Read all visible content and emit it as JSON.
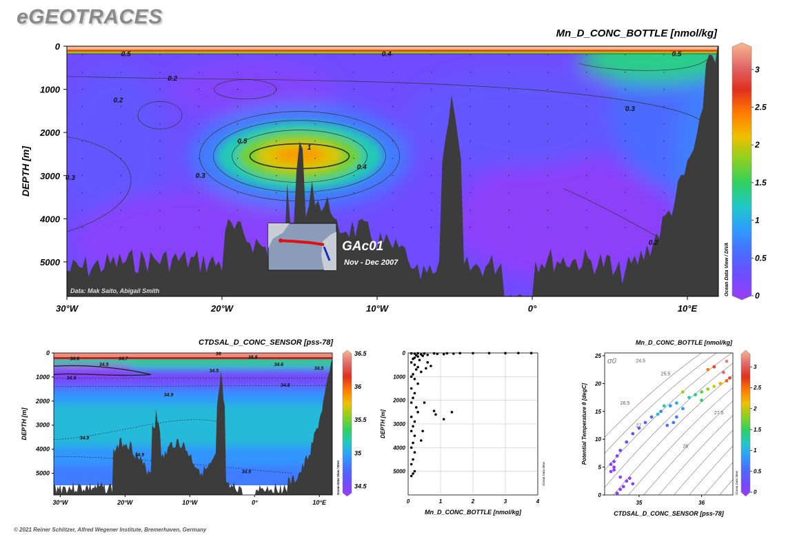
{
  "brand": "eGEOTRACES",
  "copyright": "© 2021 Reiner Schlitzer, Alfred Wegener Institute, Bremerhaven, Germany",
  "colors": {
    "scale": [
      "#9b3cf5",
      "#6f4cff",
      "#4a6bff",
      "#2f9bff",
      "#20c8c8",
      "#30d060",
      "#8ad020",
      "#f0c000",
      "#ff7a00",
      "#e03020",
      "#e06a6a",
      "#f8b890"
    ],
    "seafloor": "#3c3c3c",
    "axis": "#000000"
  },
  "chart_data": [
    {
      "id": "main-section",
      "type": "heatmap",
      "title": "Mn_D_CONC_BOTTLE [nmol/kg]",
      "ylabel": "DEPTH [m]",
      "x_ticks": [
        "30°W",
        "20°W",
        "10°W",
        "0°",
        "10°E"
      ],
      "y_ticks": [
        "0",
        "1000",
        "2000",
        "3000",
        "4000",
        "5000"
      ],
      "xlim": [
        -30,
        12
      ],
      "ylim": [
        0,
        5800
      ],
      "colorbar": {
        "ticks": [
          "0",
          "0.5",
          "1",
          "1.5",
          "2",
          "2.5",
          "3"
        ],
        "range": [
          0,
          3.3
        ],
        "label": "Ocean Data View / DIVA"
      },
      "contour_labels": [
        "0.5",
        "0.2",
        "0.2",
        "0.4",
        "0.5",
        "0.3",
        "0.5",
        "1",
        "0.3",
        "0.4",
        "0.3",
        "0.2"
      ],
      "data_credit": "Data: Mak Saito, Abigail Smith",
      "inset": {
        "cruise": "GAc01",
        "period": "Nov - Dec 2007"
      }
    },
    {
      "id": "salinity-section",
      "type": "heatmap",
      "title": "CTDSAL_D_CONC_SENSOR [pss-78]",
      "ylabel": "DEPTH [m]",
      "x_ticks": [
        "30°W",
        "20°W",
        "10°W",
        "0°",
        "10°E"
      ],
      "y_ticks": [
        "0",
        "1000",
        "2000",
        "3000",
        "4000",
        "5000"
      ],
      "xlim": [
        -31,
        12
      ],
      "ylim": [
        0,
        5900
      ],
      "colorbar": {
        "ticks": [
          "34.5",
          "35",
          "35.5",
          "36",
          "36.5"
        ],
        "range": [
          34.4,
          36.5
        ],
        "label": "Ocean Data View / DIVA"
      },
      "contour_labels": [
        "36",
        "34.6",
        "34.7",
        "34.5",
        "35.5",
        "34.6",
        "34.5",
        "34.5",
        "34.6",
        "34.8",
        "34.9",
        "34.9",
        "34.9",
        "34.9"
      ]
    },
    {
      "id": "profile-scatter",
      "type": "scatter",
      "xlabel": "Mn_D_CONC_BOTTLE [nmol/kg]",
      "ylabel": "DEPTH [m]",
      "x_ticks": [
        "0",
        "1",
        "2",
        "3",
        "4"
      ],
      "y_ticks": [
        "1000",
        "2000",
        "3000",
        "4000",
        "5000"
      ],
      "xlim": [
        0,
        4
      ],
      "ylim": [
        0,
        6000
      ],
      "side_label": "Ocean Data View",
      "points": [
        [
          0.1,
          20
        ],
        [
          0.2,
          30
        ],
        [
          0.3,
          15
        ],
        [
          0.5,
          25
        ],
        [
          0.8,
          20
        ],
        [
          1.2,
          15
        ],
        [
          1.6,
          10
        ],
        [
          2.0,
          12
        ],
        [
          2.5,
          8
        ],
        [
          3.0,
          10
        ],
        [
          3.4,
          5
        ],
        [
          3.8,
          6
        ],
        [
          0.4,
          60
        ],
        [
          0.6,
          80
        ],
        [
          0.9,
          40
        ],
        [
          1.1,
          50
        ],
        [
          1.4,
          30
        ],
        [
          0.25,
          100
        ],
        [
          0.3,
          150
        ],
        [
          0.2,
          200
        ],
        [
          0.15,
          250
        ],
        [
          0.35,
          300
        ],
        [
          0.45,
          120
        ],
        [
          0.1,
          400
        ],
        [
          0.2,
          500
        ],
        [
          0.3,
          600
        ],
        [
          0.25,
          700
        ],
        [
          0.4,
          800
        ],
        [
          0.15,
          900
        ],
        [
          0.1,
          1000
        ],
        [
          0.2,
          1100
        ],
        [
          0.3,
          1300
        ],
        [
          0.1,
          1500
        ],
        [
          0.2,
          1700
        ],
        [
          0.15,
          1900
        ],
        [
          0.1,
          2100
        ],
        [
          0.25,
          2300
        ],
        [
          0.3,
          2500
        ],
        [
          0.1,
          2700
        ],
        [
          0.2,
          2900
        ],
        [
          0.15,
          3100
        ],
        [
          0.1,
          3300
        ],
        [
          0.2,
          3500
        ],
        [
          0.15,
          3800
        ],
        [
          0.1,
          4000
        ],
        [
          0.2,
          4200
        ],
        [
          0.15,
          4500
        ],
        [
          0.1,
          4700
        ],
        [
          0.2,
          5000
        ],
        [
          0.15,
          5100
        ],
        [
          0.1,
          5200
        ],
        [
          0.55,
          650
        ],
        [
          0.7,
          550
        ],
        [
          0.6,
          400
        ],
        [
          0.8,
          2450
        ],
        [
          0.85,
          2600
        ],
        [
          1.1,
          2800
        ],
        [
          1.35,
          2500
        ],
        [
          0.5,
          2100
        ],
        [
          0.45,
          3300
        ],
        [
          0.4,
          3700
        ]
      ]
    },
    {
      "id": "ts-diagram",
      "type": "scatter",
      "title": "Mn_D_CONC_BOTTLE [nmol/kg]",
      "xlabel": "CTDSAL_D_CONC_SENSOR [pss-78]",
      "ylabel": "Potential Temperature θ [degC]",
      "x_ticks": [
        "35",
        "36"
      ],
      "y_ticks": [
        "0",
        "5",
        "10",
        "15",
        "20",
        "25"
      ],
      "xlim": [
        34.45,
        36.5
      ],
      "ylim": [
        0,
        25.5
      ],
      "density_label": "σ0",
      "isopycnal_labels": [
        "24.5",
        "25.5",
        "26.5",
        "27",
        "27.5",
        "28"
      ],
      "colorbar": {
        "ticks": [
          "0",
          "0.5",
          "1",
          "1.5",
          "2",
          "2.5",
          "3"
        ],
        "range": [
          0,
          3.3
        ],
        "label": "Ocean Data View"
      },
      "points": [
        [
          34.55,
          4.2,
          0.1
        ],
        [
          34.6,
          5,
          0.15
        ],
        [
          34.6,
          6,
          0.2
        ],
        [
          34.65,
          7,
          0.2
        ],
        [
          34.7,
          8,
          0.25
        ],
        [
          34.8,
          9.5,
          0.3
        ],
        [
          34.9,
          11,
          0.35
        ],
        [
          35.0,
          12,
          0.4
        ],
        [
          35.1,
          13,
          0.5
        ],
        [
          35.2,
          14,
          0.6
        ],
        [
          35.35,
          15,
          0.8
        ],
        [
          35.5,
          16,
          0.9
        ],
        [
          35.6,
          16.5,
          1.0
        ],
        [
          35.8,
          17.5,
          1.2
        ],
        [
          35.9,
          18,
          1.4
        ],
        [
          36.0,
          18.5,
          1.6
        ],
        [
          36.1,
          19,
          1.8
        ],
        [
          36.2,
          19.5,
          2.0
        ],
        [
          36.3,
          20,
          2.2
        ],
        [
          36.4,
          20.5,
          2.5
        ],
        [
          36.45,
          21,
          2.8
        ],
        [
          36.35,
          22,
          3.0
        ],
        [
          36.2,
          23,
          2.6
        ],
        [
          36.4,
          24,
          3.1
        ],
        [
          36.1,
          22.5,
          2.4
        ],
        [
          35.7,
          18.5,
          1.9
        ],
        [
          35.4,
          16,
          1.3
        ],
        [
          35.3,
          14.5,
          1.1
        ],
        [
          34.85,
          3,
          0.05
        ],
        [
          34.8,
          2.5,
          0.1
        ],
        [
          34.7,
          3.2,
          0.08
        ],
        [
          34.9,
          2,
          0.06
        ],
        [
          34.75,
          1.5,
          0.05
        ],
        [
          34.7,
          1,
          0.07
        ],
        [
          34.65,
          0.3,
          0.1
        ],
        [
          34.6,
          4.5,
          0.12
        ],
        [
          34.55,
          5.5,
          0.18
        ],
        [
          35.55,
          13,
          0.7
        ],
        [
          35.6,
          14,
          0.75
        ],
        [
          35.7,
          15.5,
          0.85
        ],
        [
          35.45,
          12.5,
          0.65
        ],
        [
          36.0,
          17,
          1.5
        ]
      ]
    }
  ]
}
